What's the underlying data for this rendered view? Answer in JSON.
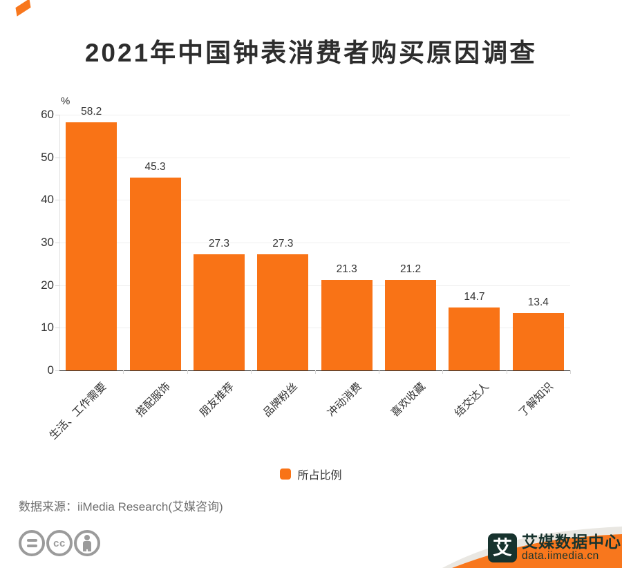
{
  "title": "2021年中国钟表消费者购买原因调查",
  "accent_color": "#f97316",
  "chart_data": {
    "type": "bar",
    "title": "2021年中国钟表消费者购买原因调查",
    "xlabel": "",
    "ylabel": "%",
    "categories": [
      "生活、工作需要",
      "搭配服饰",
      "朋友推荐",
      "品牌粉丝",
      "冲动消费",
      "喜欢收藏",
      "结交达人",
      "了解知识"
    ],
    "series": [
      {
        "name": "所占比例",
        "values": [
          58.2,
          45.3,
          27.3,
          27.3,
          21.3,
          21.2,
          14.7,
          13.4
        ]
      }
    ],
    "value_labels": [
      "58.2",
      "45.3",
      "27.3",
      "27.3",
      "21.3",
      "21.2",
      "14.7",
      "13.4"
    ],
    "ylim": [
      0,
      60
    ],
    "yticks": [
      0,
      10,
      20,
      30,
      40,
      50,
      60
    ],
    "grid": true,
    "legend_position": "bottom",
    "bar_color": "#f97316"
  },
  "legend": {
    "label": "所占比例",
    "swatch_color": "#f97316"
  },
  "source": {
    "text": "数据来源：iiMedia Research(艾媒咨询)"
  },
  "footer": {
    "icons": [
      "equals-icon",
      "cc-icon",
      "person-icon"
    ],
    "logo": {
      "symbol": "艾",
      "name": "艾媒数据中心",
      "url_text": "data.iimedia.cn",
      "banner_color": "#f8771d",
      "band_color": "#e9e7e2",
      "text_color": "#17332e"
    }
  }
}
